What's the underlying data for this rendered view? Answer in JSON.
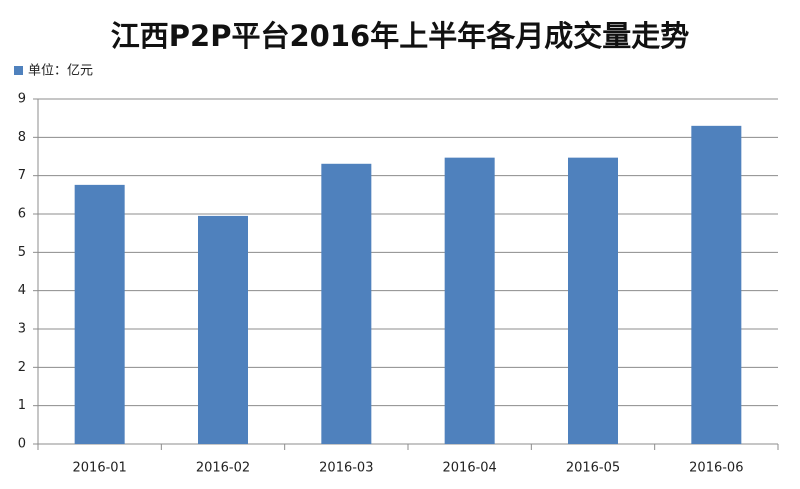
{
  "chart_data": {
    "type": "bar",
    "title": "江西P2P平台2016年上半年各月成交量走势",
    "categories": [
      "2016-01",
      "2016-02",
      "2016-03",
      "2016-04",
      "2016-05",
      "2016-06"
    ],
    "series": [
      {
        "name": "单位：亿元",
        "color": "#4f81bd",
        "values": [
          6.76,
          5.95,
          7.31,
          7.47,
          7.47,
          8.3
        ]
      }
    ],
    "ylim": [
      0,
      9
    ],
    "yticks": [
      0,
      1,
      2,
      3,
      4,
      5,
      6,
      7,
      8,
      9
    ],
    "grid": true,
    "legend": "top-left"
  }
}
